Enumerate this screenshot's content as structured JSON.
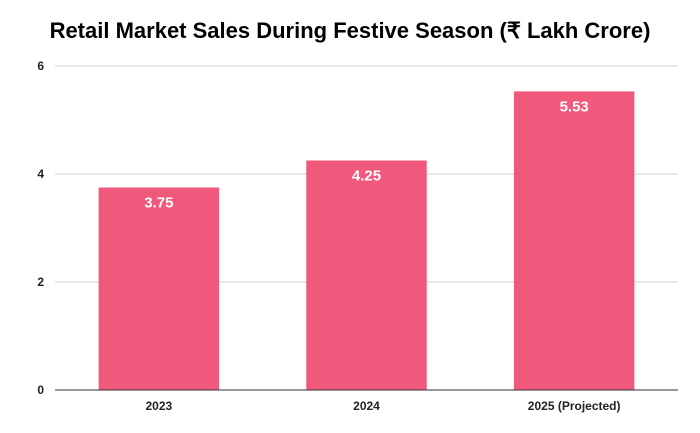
{
  "chart_data": {
    "type": "bar",
    "title": "Retail Market Sales During Festive Season (₹ Lakh Crore)",
    "xlabel": "",
    "ylabel": "",
    "categories": [
      "2023",
      "2024",
      "2025 (Projected)"
    ],
    "values": [
      3.75,
      4.25,
      5.53
    ],
    "data_labels": [
      "3.75",
      "4.25",
      "5.53"
    ],
    "ylim": [
      0,
      6
    ],
    "yticks": [
      0,
      2,
      4,
      6
    ],
    "ytick_labels": [
      "0",
      "2",
      "4",
      "6"
    ],
    "grid": true,
    "legend": "none",
    "colors": {
      "bar": "#f0587c",
      "grid": "#d0d0d0",
      "axis": "#333333"
    }
  }
}
